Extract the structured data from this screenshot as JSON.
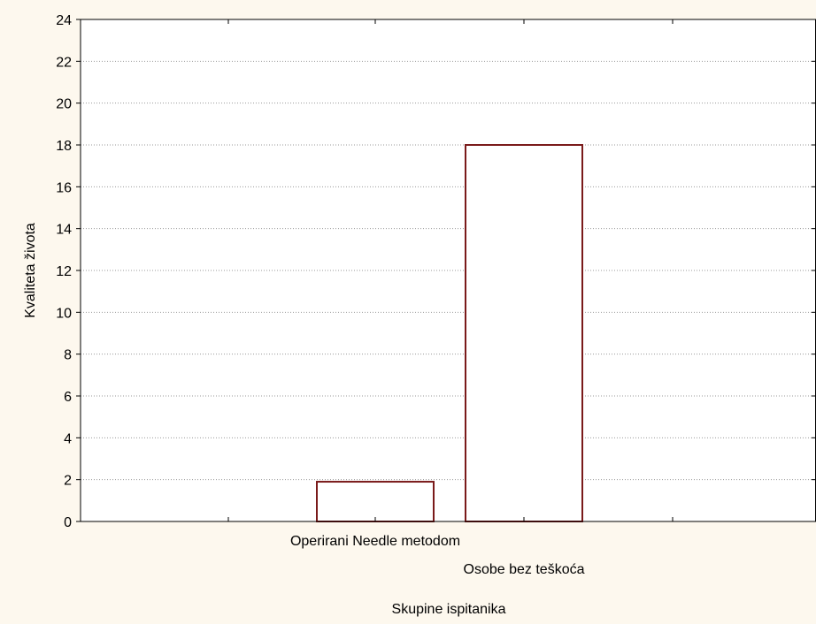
{
  "chart_data": {
    "type": "bar",
    "title": "",
    "xlabel": "Skupine ispitanika",
    "ylabel": "Kvaliteta života",
    "categories": [
      "Operirani Needle metodom",
      "Osobe bez teškoća"
    ],
    "values": [
      1.9,
      18
    ],
    "ylim": [
      0,
      24
    ],
    "yticks": [
      0,
      2,
      4,
      6,
      8,
      10,
      12,
      14,
      16,
      18,
      20,
      22,
      24
    ],
    "grid": true,
    "legend": "none",
    "colors": {
      "bar_edge": "#7a1a1a",
      "bar_fill": "#ffffff",
      "plot_bg": "#ffffff",
      "frame_bg": "#fdf8ee",
      "grid": "#999999"
    }
  }
}
